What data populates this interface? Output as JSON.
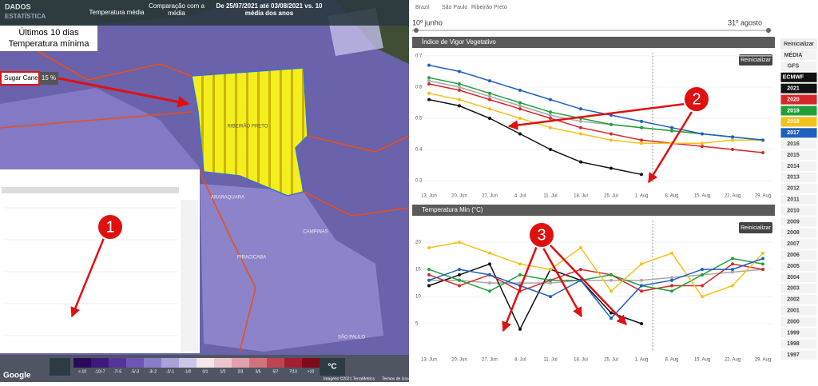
{
  "map": {
    "brand": [
      "DADOS",
      "ESTATÍSTICA"
    ],
    "tabs": [
      "Temperatura média",
      "Comparação com a média",
      "De 25/07/2021 até 03/08/2021 vs. 10 média dos anos"
    ],
    "overlay": [
      "Últimos 10 dias",
      "Temperatura mínima"
    ],
    "crop": {
      "label": "Sugar Cane",
      "value": "15 %"
    },
    "places": [
      "RIBEIRÃO PRETO",
      "ARARAQUARA",
      "CAMPINAS",
      "PIRACICABA",
      "SÃO PAULO"
    ],
    "legend": {
      "bins": [
        "<-10",
        "-10/-7",
        "-7/-5",
        "-5/-3",
        "-3/-2",
        "-2/-1",
        "-1/0",
        "0/1",
        "1/2",
        "2/3",
        "3/5",
        "5/7",
        "7/10",
        ">10"
      ],
      "unit": "°C"
    },
    "footer": [
      "Google",
      "Imagens ©2021 TerraMetrics",
      "Termos de Uso"
    ]
  },
  "breadcrumb": [
    "Brazil",
    "São Paulo",
    "Ribeirão Preto"
  ],
  "date_start": "10º junho",
  "date_end": "31º agosto",
  "sidebar": {
    "button": "Reinicializar",
    "items": [
      "MÉDIA",
      "GFS",
      "ECMWF",
      "2021",
      "2020",
      "2019",
      "2018",
      "2017",
      "2016",
      "2015",
      "2014",
      "2013",
      "2012",
      "2011",
      "2010",
      "2009",
      "2008",
      "2007",
      "2006",
      "2005",
      "2004",
      "2003",
      "2002",
      "2001",
      "2000",
      "1999",
      "1998",
      "1997"
    ]
  },
  "annotations": [
    "1",
    "2",
    "3"
  ],
  "chart_data": [
    {
      "type": "line",
      "title": "Índice de Vigor Vegetativo",
      "button": "Reinicializar",
      "categories": [
        "13. Jun",
        "20. Jun",
        "27. Jun",
        "4. Jul",
        "11. Jul",
        "18. Jul",
        "25. Jul",
        "1. Aug",
        "8. Aug",
        "15. Aug",
        "22. Aug",
        "29. Aug"
      ],
      "ylim": [
        0.29,
        0.71
      ],
      "yticks": [
        0.3,
        0.4,
        0.5,
        0.6,
        0.7
      ],
      "series": [
        {
          "name": "MÉDIA",
          "color": "#a8a8a8",
          "values": [
            0.62,
            0.6,
            0.57,
            0.54,
            0.51,
            0.49,
            0.48,
            0.47,
            0.46,
            0.45,
            0.44,
            0.43
          ]
        },
        {
          "name": "2021",
          "color": "#111111",
          "values": [
            0.56,
            0.54,
            0.5,
            0.45,
            0.4,
            0.36,
            0.34,
            0.32,
            null,
            null,
            null,
            null
          ]
        },
        {
          "name": "2020",
          "color": "#d62728",
          "values": [
            0.61,
            0.59,
            0.56,
            0.53,
            0.5,
            0.47,
            0.45,
            0.43,
            0.42,
            0.41,
            0.4,
            0.39
          ]
        },
        {
          "name": "2019",
          "color": "#23a03a",
          "values": [
            0.63,
            0.61,
            0.58,
            0.55,
            0.52,
            0.5,
            0.48,
            0.47,
            0.46,
            0.45,
            0.44,
            0.43
          ]
        },
        {
          "name": "2018",
          "color": "#f2c21b",
          "values": [
            0.58,
            0.56,
            0.53,
            0.5,
            0.47,
            0.45,
            0.43,
            0.42,
            0.42,
            0.42,
            0.43,
            0.43
          ]
        },
        {
          "name": "2017",
          "color": "#1f5fbf",
          "values": [
            0.67,
            0.65,
            0.62,
            0.59,
            0.56,
            0.53,
            0.51,
            0.49,
            0.47,
            0.45,
            0.44,
            0.43
          ]
        }
      ]
    },
    {
      "type": "line",
      "title": "Temperatura Min (°C)",
      "button": "Reinicializar",
      "categories": [
        "13. Jun",
        "20. Jun",
        "27. Jun",
        "4. Jul",
        "11. Jul",
        "18. Jul",
        "25. Jul",
        "1. Aug",
        "8. Aug",
        "15. Aug",
        "22. Aug",
        "29. Aug"
      ],
      "ylim": [
        0,
        24
      ],
      "yticks": [
        5,
        10,
        15,
        20
      ],
      "series": [
        {
          "name": "MÉDIA",
          "color": "#a8a8a8",
          "values": [
            13,
            13,
            12.5,
            12.5,
            12.5,
            13,
            13,
            13,
            13.5,
            14,
            14.5,
            15
          ]
        },
        {
          "name": "2021",
          "color": "#111111",
          "values": [
            12,
            14,
            16,
            4,
            15,
            13,
            7,
            5,
            null,
            null,
            null,
            null
          ]
        },
        {
          "name": "2020",
          "color": "#d62728",
          "values": [
            14,
            12,
            14,
            11,
            13,
            15,
            14,
            11,
            12,
            12,
            16,
            15
          ]
        },
        {
          "name": "2019",
          "color": "#23a03a",
          "values": [
            15,
            13,
            11,
            14,
            13,
            13,
            14,
            12,
            11,
            14,
            17,
            16
          ]
        },
        {
          "name": "2018",
          "color": "#f2c21b",
          "values": [
            19,
            20,
            18,
            16,
            15,
            19,
            11,
            16,
            18,
            10,
            12,
            18
          ]
        },
        {
          "name": "2017",
          "color": "#1f5fbf",
          "values": [
            13,
            15,
            14,
            12,
            10,
            13,
            6,
            12,
            13,
            15,
            15,
            17
          ]
        }
      ]
    }
  ]
}
